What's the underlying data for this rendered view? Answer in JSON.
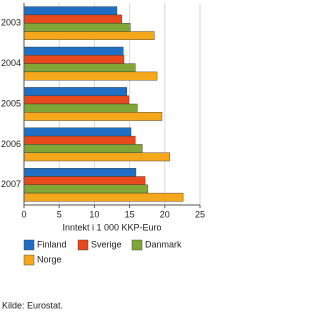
{
  "chart_data": {
    "type": "hbar",
    "categories": [
      "2003",
      "2004",
      "2005",
      "2006",
      "2007"
    ],
    "series": [
      {
        "name": "Finland",
        "color": "#1f6fc5",
        "values": [
          13.2,
          14.1,
          14.6,
          15.2,
          15.9
        ]
      },
      {
        "name": "Sverige",
        "color": "#e8491d",
        "values": [
          13.9,
          14.2,
          14.9,
          15.8,
          17.2
        ]
      },
      {
        "name": "Danmark",
        "color": "#7fa636",
        "values": [
          15.1,
          15.8,
          16.1,
          16.8,
          17.6
        ]
      },
      {
        "name": "Norge",
        "color": "#f5a81c",
        "values": [
          18.5,
          18.9,
          19.6,
          20.7,
          22.6
        ]
      }
    ],
    "xlim": [
      0,
      25
    ],
    "xticks": [
      0,
      5,
      10,
      15,
      20,
      25
    ],
    "grid": true,
    "xlabel": "Inntekt i 1 000 KKP-Euro",
    "source": "Kilde: Eurostat."
  }
}
